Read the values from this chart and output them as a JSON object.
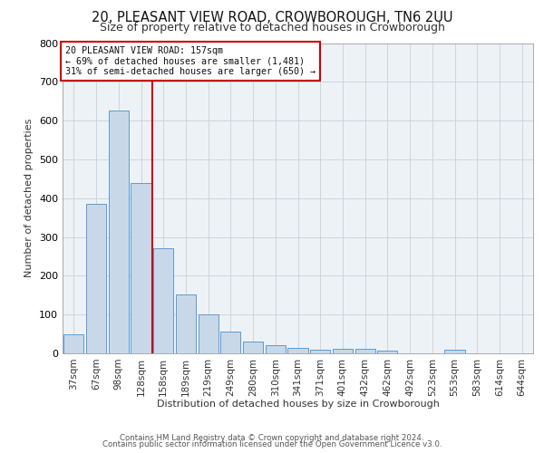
{
  "title1": "20, PLEASANT VIEW ROAD, CROWBOROUGH, TN6 2UU",
  "title2": "Size of property relative to detached houses in Crowborough",
  "xlabel": "Distribution of detached houses by size in Crowborough",
  "ylabel": "Number of detached properties",
  "categories": [
    "37sqm",
    "67sqm",
    "98sqm",
    "128sqm",
    "158sqm",
    "189sqm",
    "219sqm",
    "249sqm",
    "280sqm",
    "310sqm",
    "341sqm",
    "371sqm",
    "401sqm",
    "432sqm",
    "462sqm",
    "492sqm",
    "523sqm",
    "553sqm",
    "583sqm",
    "614sqm",
    "644sqm"
  ],
  "values": [
    50,
    385,
    625,
    440,
    270,
    152,
    100,
    55,
    30,
    20,
    15,
    10,
    12,
    12,
    6,
    0,
    0,
    10,
    0,
    0,
    0
  ],
  "bar_color": "#c8d8e8",
  "bar_edge_color": "#5b9bd5",
  "vline_color": "#cc0000",
  "annotation_line1": "20 PLEASANT VIEW ROAD: 157sqm",
  "annotation_line2": "← 69% of detached houses are smaller (1,481)",
  "annotation_line3": "31% of semi-detached houses are larger (650) →",
  "annotation_box_color": "#cc0000",
  "ylim": [
    0,
    800
  ],
  "yticks": [
    0,
    100,
    200,
    300,
    400,
    500,
    600,
    700,
    800
  ],
  "grid_color": "#c8d0d8",
  "bg_color": "#edf2f7",
  "footer1": "Contains HM Land Registry data © Crown copyright and database right 2024.",
  "footer2": "Contains public sector information licensed under the Open Government Licence v3.0."
}
